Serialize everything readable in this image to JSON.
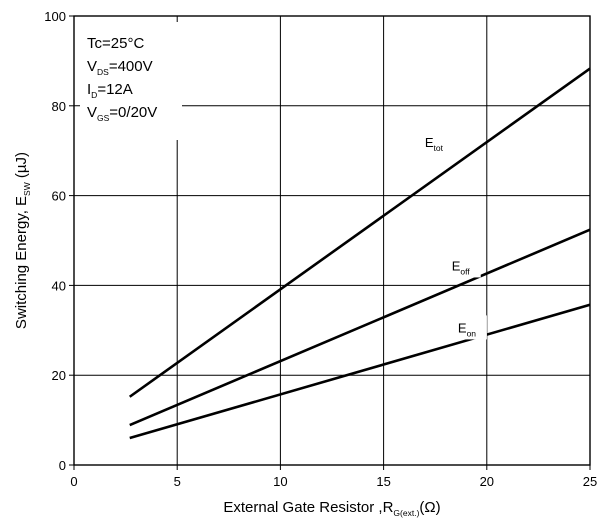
{
  "chart_data": {
    "type": "line",
    "xlabel": {
      "main": "External Gate Resistor ,R",
      "sub": "G(ext.)",
      "tail": "(Ω)"
    },
    "ylabel": {
      "main": "Switching Energy, E",
      "sub": "SW",
      "tail": " (µJ)"
    },
    "xlim": [
      0,
      25
    ],
    "ylim": [
      0,
      100
    ],
    "x_ticks": [
      0,
      5,
      10,
      15,
      20,
      25
    ],
    "y_ticks": [
      0,
      20,
      40,
      60,
      80,
      100
    ],
    "grid": true,
    "conditions": [
      {
        "main": "Tc=25°C",
        "sub": "",
        "tail": ""
      },
      {
        "main": "V",
        "sub": "DS",
        "tail": "=400V"
      },
      {
        "main": "I",
        "sub": "D",
        "tail": "=12A"
      },
      {
        "main": "V",
        "sub": "GS",
        "tail": "=0/20V"
      }
    ],
    "series": [
      {
        "name": "E",
        "name_sub": "tot",
        "x": [
          2.7,
          25
        ],
        "y": [
          15.2,
          88.3
        ],
        "label_at": [
          17.0,
          71.5
        ]
      },
      {
        "name": "E",
        "name_sub": "off",
        "x": [
          2.7,
          25
        ],
        "y": [
          8.9,
          52.4
        ],
        "label_at": [
          18.3,
          44.0
        ]
      },
      {
        "name": "E",
        "name_sub": "on",
        "x": [
          2.7,
          25
        ],
        "y": [
          6.0,
          35.7
        ],
        "label_at": [
          18.6,
          30.2
        ]
      }
    ]
  }
}
